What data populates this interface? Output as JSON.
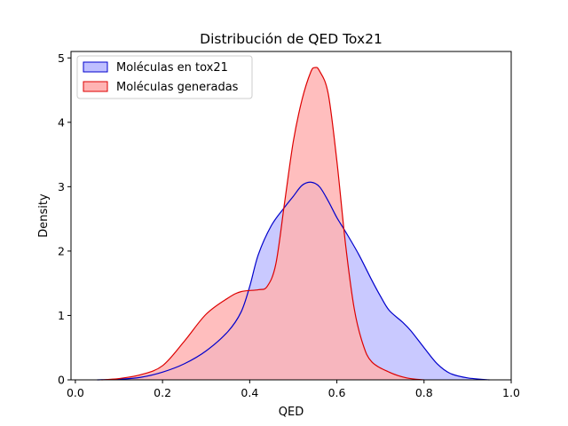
{
  "chart_data": {
    "type": "area",
    "title": "Distribución de QED Tox21",
    "xlabel": "QED",
    "ylabel": "Density",
    "xlim": [
      -0.01,
      1.0
    ],
    "ylim": [
      0,
      5.1
    ],
    "xticks": [
      "0.0",
      "0.2",
      "0.4",
      "0.6",
      "0.8",
      "1.0"
    ],
    "yticks": [
      "0",
      "1",
      "2",
      "3",
      "4",
      "5"
    ],
    "grid": false,
    "legend": "top-left",
    "series": [
      {
        "name": "Moléculas en tox21",
        "color": "#0000cc",
        "fill": "#bfbfff",
        "points": [
          [
            0.05,
            0.0
          ],
          [
            0.1,
            0.01
          ],
          [
            0.15,
            0.04
          ],
          [
            0.2,
            0.12
          ],
          [
            0.25,
            0.25
          ],
          [
            0.3,
            0.45
          ],
          [
            0.35,
            0.75
          ],
          [
            0.38,
            1.05
          ],
          [
            0.4,
            1.45
          ],
          [
            0.42,
            1.95
          ],
          [
            0.45,
            2.4
          ],
          [
            0.48,
            2.68
          ],
          [
            0.5,
            2.85
          ],
          [
            0.52,
            3.02
          ],
          [
            0.54,
            3.07
          ],
          [
            0.56,
            3.0
          ],
          [
            0.58,
            2.78
          ],
          [
            0.6,
            2.52
          ],
          [
            0.62,
            2.3
          ],
          [
            0.65,
            1.95
          ],
          [
            0.68,
            1.55
          ],
          [
            0.7,
            1.3
          ],
          [
            0.72,
            1.08
          ],
          [
            0.75,
            0.9
          ],
          [
            0.77,
            0.76
          ],
          [
            0.8,
            0.5
          ],
          [
            0.83,
            0.25
          ],
          [
            0.86,
            0.1
          ],
          [
            0.9,
            0.03
          ],
          [
            0.95,
            0.0
          ]
        ]
      },
      {
        "name": "Moléculas generadas",
        "color": "#dd0000",
        "fill": "#ffb3b3",
        "points": [
          [
            0.06,
            0.0
          ],
          [
            0.1,
            0.02
          ],
          [
            0.15,
            0.08
          ],
          [
            0.2,
            0.22
          ],
          [
            0.25,
            0.6
          ],
          [
            0.3,
            1.02
          ],
          [
            0.35,
            1.27
          ],
          [
            0.38,
            1.37
          ],
          [
            0.42,
            1.4
          ],
          [
            0.44,
            1.45
          ],
          [
            0.46,
            1.8
          ],
          [
            0.48,
            2.75
          ],
          [
            0.5,
            3.7
          ],
          [
            0.52,
            4.35
          ],
          [
            0.54,
            4.78
          ],
          [
            0.55,
            4.85
          ],
          [
            0.56,
            4.8
          ],
          [
            0.58,
            4.45
          ],
          [
            0.6,
            3.4
          ],
          [
            0.62,
            2.1
          ],
          [
            0.64,
            1.1
          ],
          [
            0.66,
            0.55
          ],
          [
            0.68,
            0.28
          ],
          [
            0.72,
            0.12
          ],
          [
            0.76,
            0.03
          ],
          [
            0.8,
            0.0
          ]
        ]
      }
    ]
  }
}
